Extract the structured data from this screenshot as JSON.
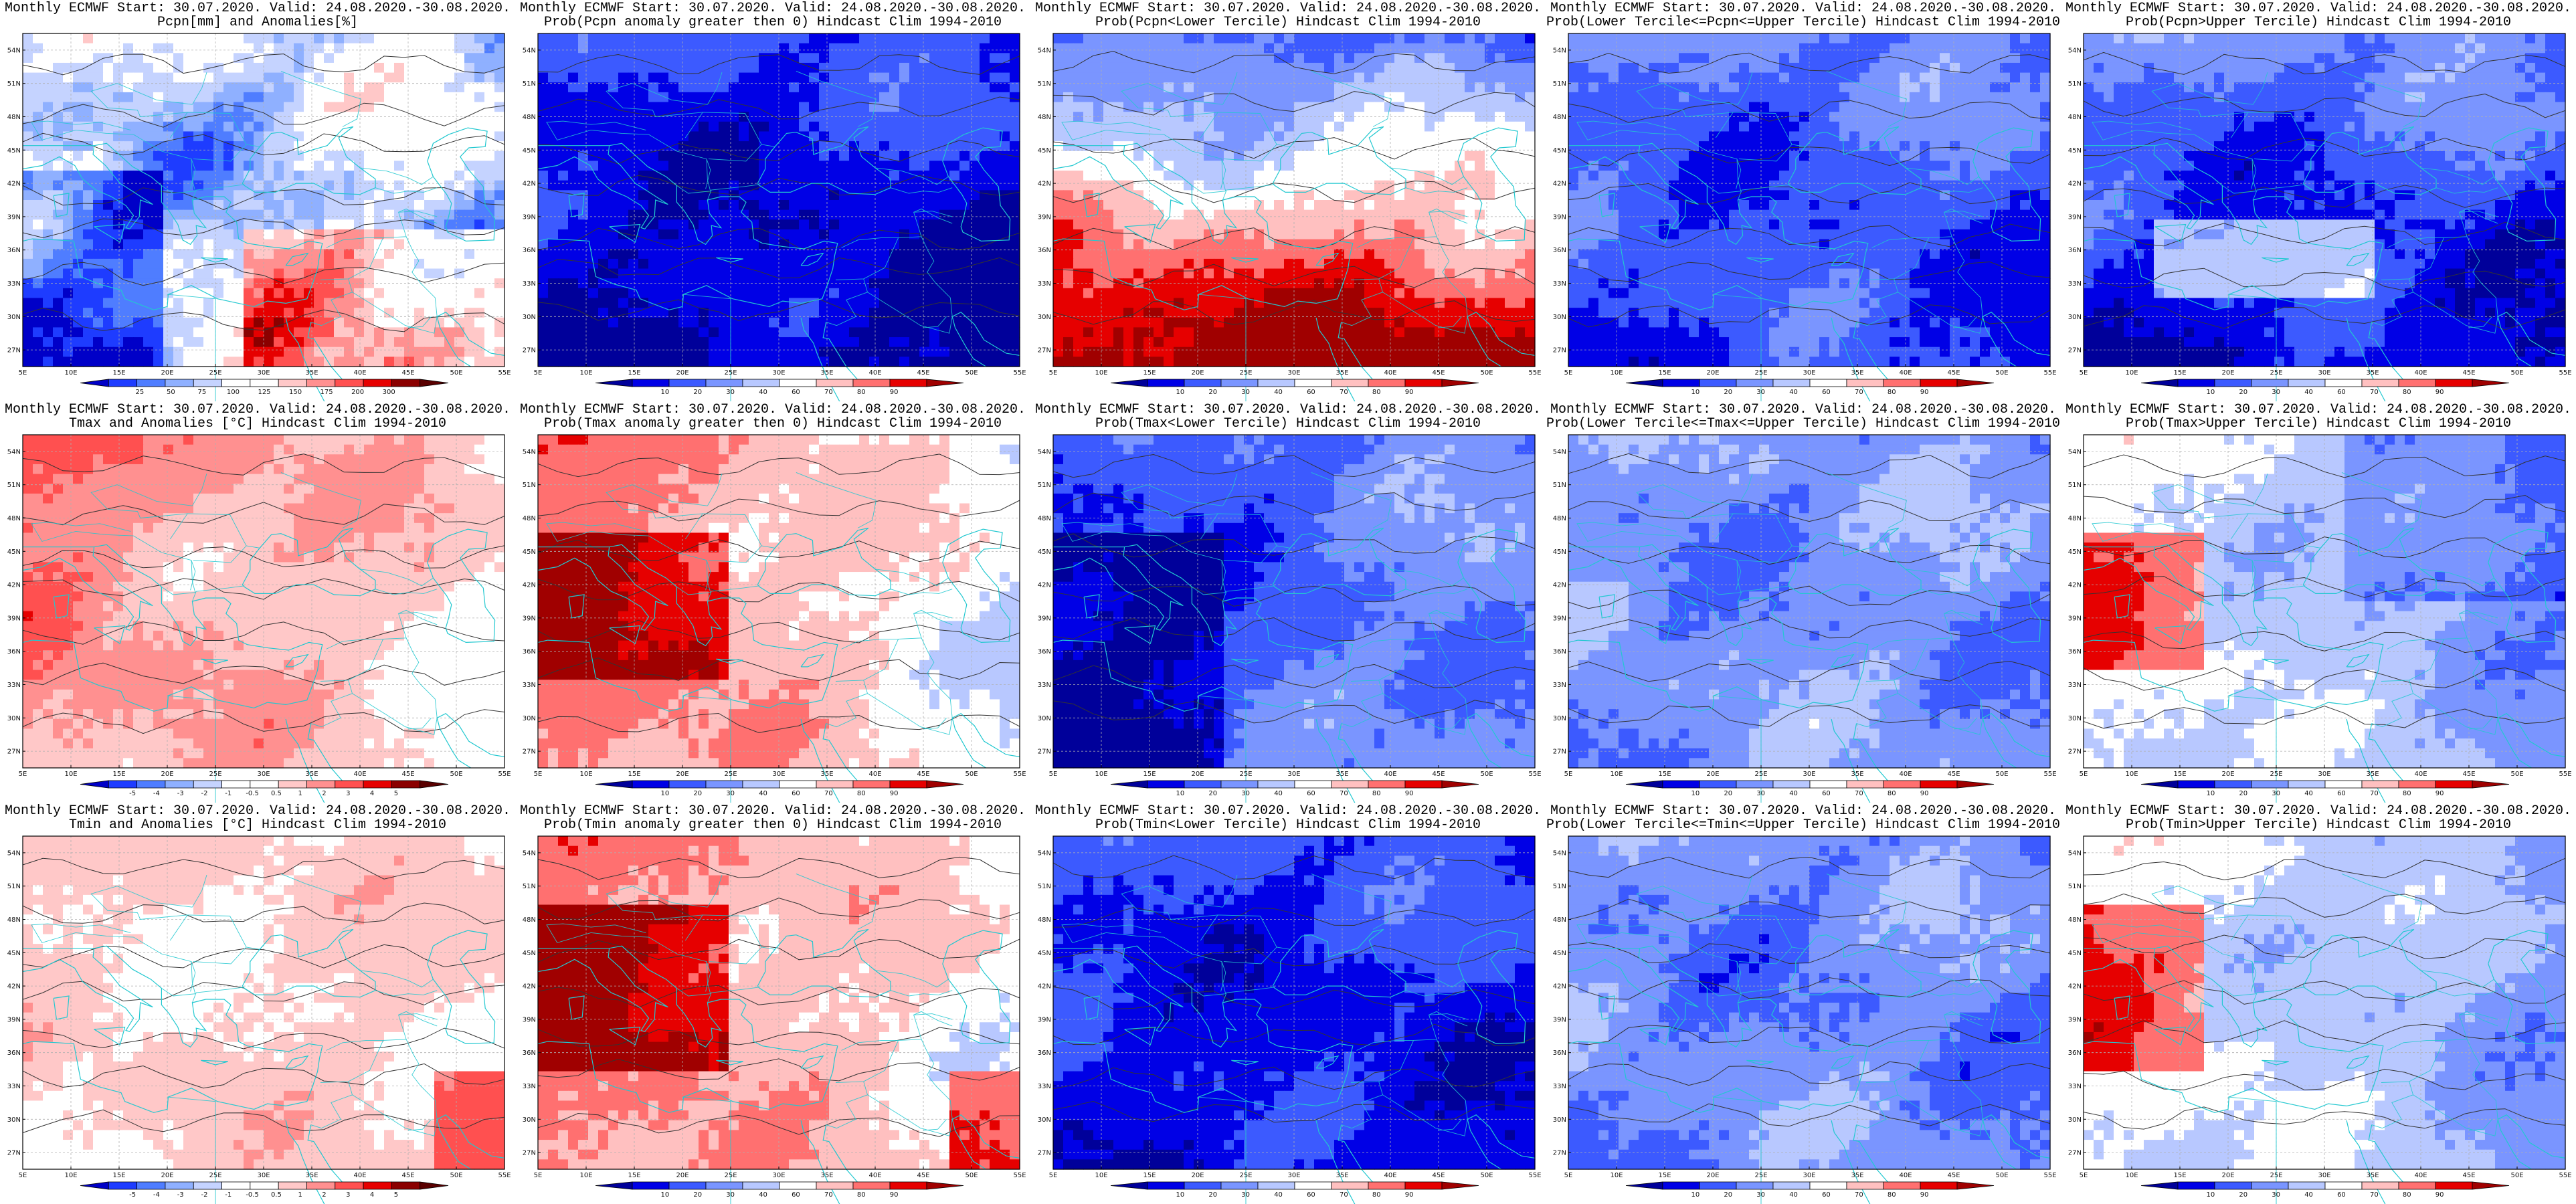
{
  "figure": {
    "panels": [
      {
        "line1": "Monthly ECMWF Start: 30.07.2020. Valid: 24.08.2020.-30.08.2020.",
        "line2": "Pcpn[mm] and Anomalies[%]",
        "variable": "precip-anomaly",
        "colorbar": [
          "25",
          "50",
          "75",
          "100",
          "125",
          "150",
          "175",
          "200",
          "300"
        ]
      },
      {
        "line1": "Monthly ECMWF Start: 30.07.2020. Valid: 24.08.2020.-30.08.2020.",
        "line2": "Prob(Pcpn anomaly greater then 0) Hindcast Clim 1994-2010",
        "variable": "precip-prob-positive",
        "colorbar": [
          "10",
          "20",
          "30",
          "40",
          "60",
          "70",
          "80",
          "90"
        ]
      },
      {
        "line1": "Monthly ECMWF Start: 30.07.2020. Valid: 24.08.2020.-30.08.2020.",
        "line2": "Prob(Pcpn<Lower Tercile) Hindcast Clim 1994-2010",
        "variable": "precip-prob-lower",
        "colorbar": [
          "10",
          "20",
          "30",
          "40",
          "60",
          "70",
          "80",
          "90"
        ]
      },
      {
        "line1": "Monthly ECMWF Start: 30.07.2020. Valid: 24.08.2020.-30.08.2020.",
        "line2": "Prob(Lower Tercile<=Pcpn<=Upper Tercile) Hindcast Clim 1994-2010",
        "variable": "precip-prob-middle",
        "colorbar": [
          "10",
          "20",
          "30",
          "40",
          "60",
          "70",
          "80",
          "90"
        ]
      },
      {
        "line1": "Monthly ECMWF Start: 30.07.2020. Valid: 24.08.2020.-30.08.2020.",
        "line2": "Prob(Pcpn>Upper Tercile) Hindcast Clim 1994-2010",
        "variable": "precip-prob-upper",
        "colorbar": [
          "10",
          "20",
          "30",
          "40",
          "60",
          "70",
          "80",
          "90"
        ]
      },
      {
        "line1": "Monthly ECMWF Start: 30.07.2020. Valid: 24.08.2020.-30.08.2020.",
        "line2": "Tmax and Anomalies [°C] Hindcast Clim 1994-2010",
        "variable": "tmax-anomaly",
        "colorbar": [
          "-5",
          "-4",
          "-3",
          "-2",
          "-1",
          "-0.5",
          "0.5",
          "1",
          "2",
          "3",
          "4",
          "5"
        ]
      },
      {
        "line1": "Monthly ECMWF Start: 30.07.2020. Valid: 24.08.2020.-30.08.2020.",
        "line2": "Prob(Tmax anomaly greater then 0) Hindcast Clim 1994-2010",
        "variable": "tmax-prob-positive",
        "colorbar": [
          "10",
          "20",
          "30",
          "40",
          "60",
          "70",
          "80",
          "90"
        ]
      },
      {
        "line1": "Monthly ECMWF Start: 30.07.2020. Valid: 24.08.2020.-30.08.2020.",
        "line2": "Prob(Tmax<Lower Tercile) Hindcast Clim 1994-2010",
        "variable": "tmax-prob-lower",
        "colorbar": [
          "10",
          "20",
          "30",
          "40",
          "60",
          "70",
          "80",
          "90"
        ]
      },
      {
        "line1": "Monthly ECMWF Start: 30.07.2020. Valid: 24.08.2020.-30.08.2020.",
        "line2": "Prob(Lower Tercile<=Tmax<=Upper Tercile) Hindcast Clim 1994-2010",
        "variable": "tmax-prob-middle",
        "colorbar": [
          "10",
          "20",
          "30",
          "40",
          "60",
          "70",
          "80",
          "90"
        ]
      },
      {
        "line1": "Monthly ECMWF Start: 30.07.2020. Valid: 24.08.2020.-30.08.2020.",
        "line2": "Prob(Tmax>Upper Tercile) Hindcast Clim 1994-2010",
        "variable": "tmax-prob-upper",
        "colorbar": [
          "10",
          "20",
          "30",
          "40",
          "60",
          "70",
          "80",
          "90"
        ]
      },
      {
        "line1": "Monthly ECMWF Start: 30.07.2020. Valid: 24.08.2020.-30.08.2020.",
        "line2": "Tmin and Anomalies [°C] Hindcast Clim 1994-2010",
        "variable": "tmin-anomaly",
        "colorbar": [
          "-5",
          "-4",
          "-3",
          "-2",
          "-1",
          "-0.5",
          "0.5",
          "1",
          "2",
          "3",
          "4",
          "5"
        ]
      },
      {
        "line1": "Monthly ECMWF Start: 30.07.2020. Valid: 24.08.2020.-30.08.2020.",
        "line2": "Prob(Tmin anomaly greater then 0) Hindcast Clim 1994-2010",
        "variable": "tmin-prob-positive",
        "colorbar": [
          "10",
          "20",
          "30",
          "40",
          "60",
          "70",
          "80",
          "90"
        ]
      },
      {
        "line1": "Monthly ECMWF Start: 30.07.2020. Valid: 24.08.2020.-30.08.2020.",
        "line2": "Prob(Tmin<Lower Tercile) Hindcast Clim 1994-2010",
        "variable": "tmin-prob-lower",
        "colorbar": [
          "10",
          "20",
          "30",
          "40",
          "60",
          "70",
          "80",
          "90"
        ]
      },
      {
        "line1": "Monthly ECMWF Start: 30.07.2020. Valid: 24.08.2020.-30.08.2020.",
        "line2": "Prob(Lower Tercile<=Tmin<=Upper Tercile) Hindcast Clim 1994-2010",
        "variable": "tmin-prob-middle",
        "colorbar": [
          "10",
          "20",
          "30",
          "40",
          "60",
          "70",
          "80",
          "90"
        ]
      },
      {
        "line1": "Monthly ECMWF Start: 30.07.2020. Valid: 24.08.2020.-30.08.2020.",
        "line2": "Prob(Tmin>Upper Tercile) Hindcast Clim 1994-2010",
        "variable": "tmin-prob-upper",
        "colorbar": [
          "10",
          "20",
          "30",
          "40",
          "60",
          "70",
          "80",
          "90"
        ]
      }
    ],
    "lat_labels": [
      "54N",
      "51N",
      "48N",
      "45N",
      "42N",
      "39N",
      "36N",
      "33N",
      "30N",
      "27N"
    ],
    "lon_labels": [
      "5E",
      "10E",
      "15E",
      "20E",
      "25E",
      "30E",
      "35E",
      "40E",
      "45E",
      "50E",
      "55E"
    ],
    "colors": {
      "frame": "#000000",
      "coast": "#22c8d0",
      "contour": "#333333",
      "gridline": "#b0b0b0",
      "anomaly_scale": [
        "#0000c8",
        "#1e3cff",
        "#4f7dff",
        "#8fb0ff",
        "#c5d3ff",
        "#ffffff",
        "#ffffff",
        "#ffc8c8",
        "#ff9090",
        "#ff5050",
        "#e60000",
        "#8b0000",
        "#5a0000"
      ],
      "probability_scale": [
        "#00009a",
        "#0000e6",
        "#3c5aff",
        "#7a95ff",
        "#b8c8ff",
        "#ffffff",
        "#ffc0c0",
        "#ff7070",
        "#e60000",
        "#a00000"
      ]
    }
  }
}
